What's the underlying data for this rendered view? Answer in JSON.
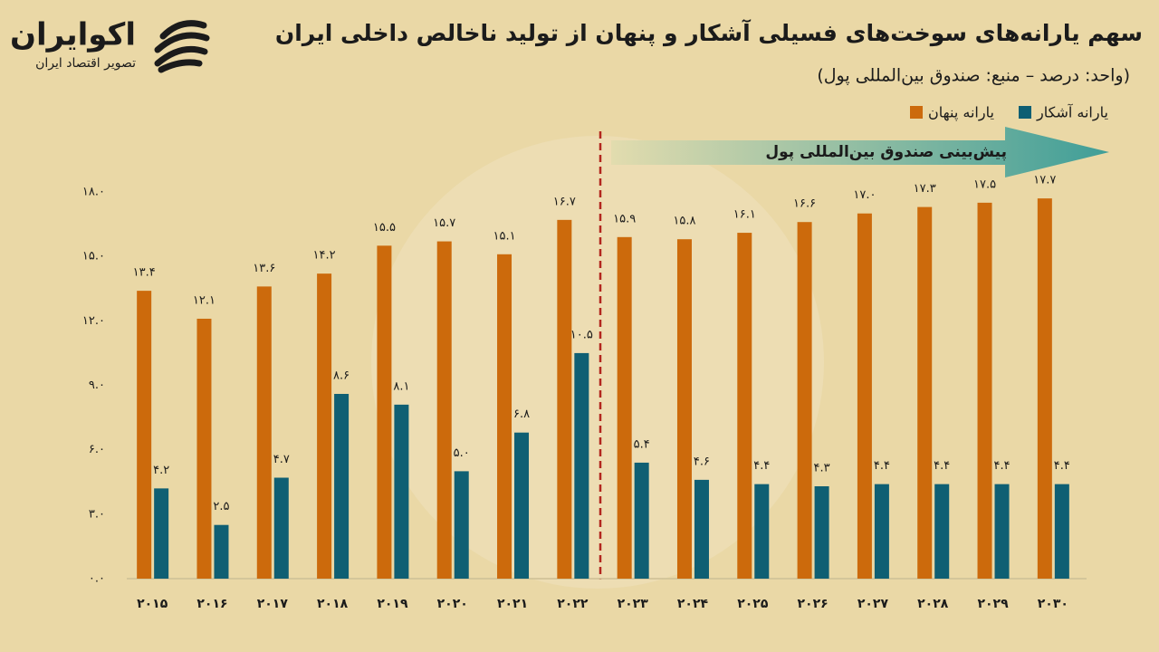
{
  "brand": {
    "name": "اکوایران",
    "tagline": "تصویر اقتصاد ایران"
  },
  "chart_data": {
    "type": "bar",
    "title": "سهم یارانه‌های سوخت‌های فسیلی آشکار و پنهان از تولید ناخالص داخلی ایران",
    "subtitle": "(واحد: درصد – منبع: صندوق بین‌المللی پول)",
    "annotation": "پیش‌بینی صندوق بین‌المللی پول",
    "categories": [
      "۲۰۱۵",
      "۲۰۱۶",
      "۲۰۱۷",
      "۲۰۱۸",
      "۲۰۱۹",
      "۲۰۲۰",
      "۲۰۲۱",
      "۲۰۲۲",
      "۲۰۲۳",
      "۲۰۲۴",
      "۲۰۲۵",
      "۲۰۲۶",
      "۲۰۲۷",
      "۲۰۲۸",
      "۲۰۲۹",
      "۲۰۳۰"
    ],
    "series": [
      {
        "name": "یارانه پنهان",
        "color": "#cc6a0c",
        "values": [
          13.4,
          12.1,
          13.6,
          14.2,
          15.5,
          15.7,
          15.1,
          16.7,
          15.9,
          15.8,
          16.1,
          16.6,
          17.0,
          17.3,
          17.5,
          17.7
        ],
        "value_labels": [
          "۱۳.۴",
          "۱۲.۱",
          "۱۳.۶",
          "۱۴.۲",
          "۱۵.۵",
          "۱۵.۷",
          "۱۵.۱",
          "۱۶.۷",
          "۱۵.۹",
          "۱۵.۸",
          "۱۶.۱",
          "۱۶.۶",
          "۱۷.۰",
          "۱۷.۳",
          "۱۷.۵",
          "۱۷.۷"
        ]
      },
      {
        "name": "یارانه آشکار",
        "color": "#0f5f73",
        "values": [
          4.2,
          2.5,
          4.7,
          8.6,
          8.1,
          5.0,
          6.8,
          10.5,
          5.4,
          4.6,
          4.4,
          4.3,
          4.4,
          4.4,
          4.4,
          4.4
        ],
        "value_labels": [
          "۴.۲",
          "۲.۵",
          "۴.۷",
          "۸.۶",
          "۸.۱",
          "۵.۰",
          "۶.۸",
          "۱۰.۵",
          "۵.۴",
          "۴.۶",
          "۴.۴",
          "۴.۳",
          "۴.۴",
          "۴.۴",
          "۴.۴",
          "۴.۴"
        ]
      }
    ],
    "ylim": [
      0,
      18
    ],
    "yticks": [
      {
        "value": 0,
        "label": "۰.۰"
      },
      {
        "value": 3,
        "label": "۳.۰"
      },
      {
        "value": 6,
        "label": "۶.۰"
      },
      {
        "value": 9,
        "label": "۹.۰"
      },
      {
        "value": 12,
        "label": "۱۲.۰"
      },
      {
        "value": 15,
        "label": "۱۵.۰"
      },
      {
        "value": 18,
        "label": "۱۸.۰"
      }
    ],
    "grid": false
  }
}
